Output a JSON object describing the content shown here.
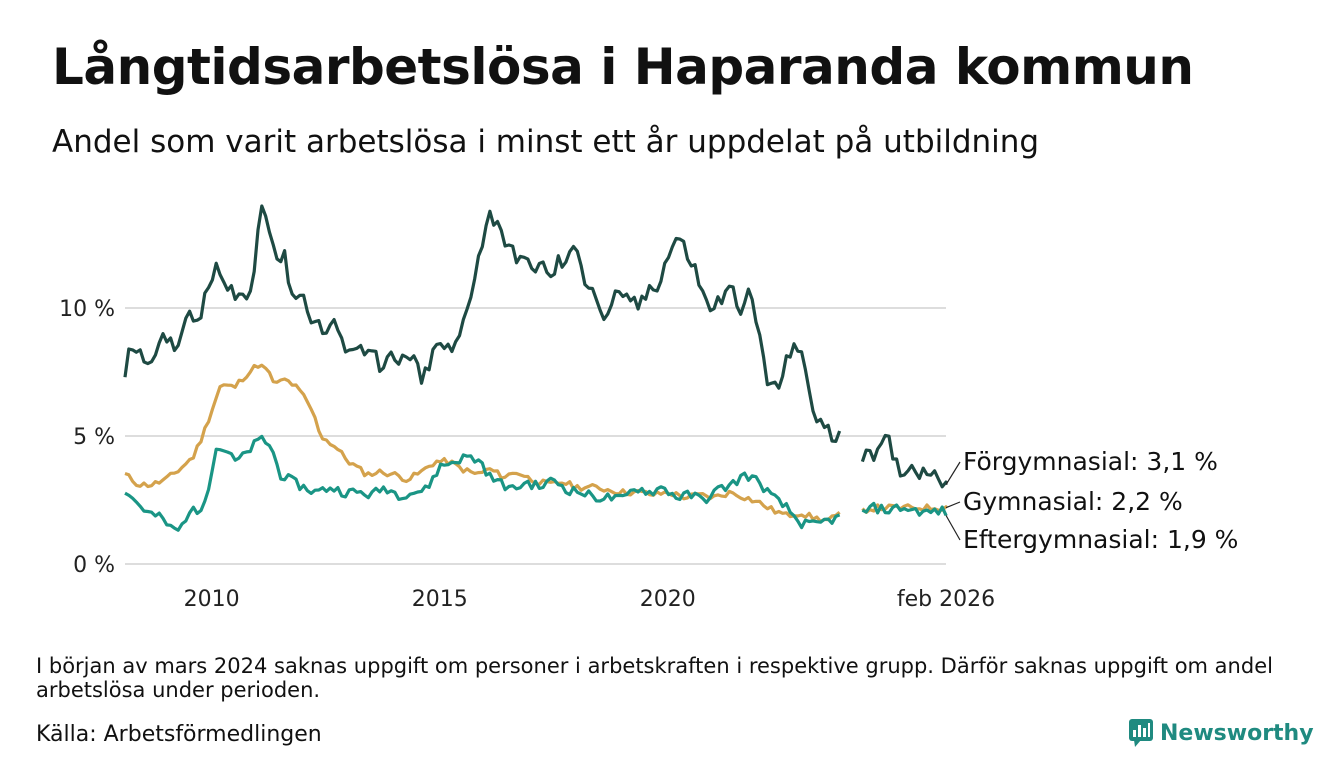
{
  "header": {
    "title": "Långtidsarbetslösa i Haparanda kommun",
    "subtitle": "Andel som varit arbetslösa i minst ett år uppdelat på utbildning"
  },
  "footer": {
    "footnote": "I början av mars 2024 saknas uppgift om personer i arbetskraften i respektive grupp. Därför saknas uppgift om andel arbetslösa under perioden.",
    "source": "Källa: Arbetsförmedlingen",
    "brand": "Newsworthy"
  },
  "colors": {
    "forgymnasial": "#1e4a43",
    "gymnasial": "#d4a24c",
    "eftergymnasial": "#1a9585",
    "grid": "#dddddd",
    "brand": "#1f8a80"
  },
  "chart_data": {
    "type": "line",
    "title": "Långtidsarbetslösa i Haparanda kommun",
    "xlabel": "",
    "ylabel": "",
    "x_tick_labels": [
      "2010",
      "2015",
      "2020",
      "feb 2026"
    ],
    "y_tick_labels": [
      "0 %",
      "5 %",
      "10 %"
    ],
    "y_ticks": [
      0,
      5,
      10
    ],
    "ylim": [
      0,
      14
    ],
    "x_start": 2008.1,
    "x_end": 2026.1,
    "gap": [
      2023.8,
      2024.2
    ],
    "series": [
      {
        "name": "Förgymnasial",
        "end_label": "Förgymnasial: 3,1 %",
        "color": "#1e4a43",
        "knots": [
          [
            2008.1,
            7.5
          ],
          [
            2008.25,
            8.6
          ],
          [
            2008.5,
            8.0
          ],
          [
            2008.8,
            8.4
          ],
          [
            2009.0,
            8.8
          ],
          [
            2009.2,
            8.6
          ],
          [
            2009.5,
            9.6
          ],
          [
            2009.7,
            9.5
          ],
          [
            2009.9,
            10.5
          ],
          [
            2010.1,
            11.7
          ],
          [
            2010.3,
            10.6
          ],
          [
            2010.5,
            10.7
          ],
          [
            2010.7,
            10.4
          ],
          [
            2010.9,
            10.6
          ],
          [
            2011.05,
            14.0
          ],
          [
            2011.2,
            13.9
          ],
          [
            2011.4,
            12.0
          ],
          [
            2011.6,
            11.9
          ],
          [
            2011.8,
            10.4
          ],
          [
            2012.0,
            10.5
          ],
          [
            2012.2,
            9.6
          ],
          [
            2012.5,
            9.0
          ],
          [
            2012.7,
            9.6
          ],
          [
            2012.8,
            8.5
          ],
          [
            2013.0,
            8.6
          ],
          [
            2013.3,
            8.3
          ],
          [
            2013.5,
            8.7
          ],
          [
            2013.7,
            7.4
          ],
          [
            2013.9,
            8.0
          ],
          [
            2014.1,
            7.8
          ],
          [
            2014.4,
            8.2
          ],
          [
            2014.6,
            7.0
          ],
          [
            2014.8,
            8.0
          ],
          [
            2015.0,
            8.6
          ],
          [
            2015.3,
            8.2
          ],
          [
            2015.5,
            9.3
          ],
          [
            2015.7,
            10.8
          ],
          [
            2015.9,
            12.4
          ],
          [
            2016.1,
            13.6
          ],
          [
            2016.3,
            13.4
          ],
          [
            2016.5,
            12.2
          ],
          [
            2016.8,
            12.0
          ],
          [
            2017.0,
            11.4
          ],
          [
            2017.2,
            11.9
          ],
          [
            2017.4,
            11.0
          ],
          [
            2017.6,
            11.8
          ],
          [
            2017.8,
            11.7
          ],
          [
            2018.0,
            12.6
          ],
          [
            2018.2,
            11.0
          ],
          [
            2018.4,
            10.7
          ],
          [
            2018.6,
            9.3
          ],
          [
            2018.8,
            10.5
          ],
          [
            2019.0,
            10.2
          ],
          [
            2019.2,
            10.4
          ],
          [
            2019.4,
            10.0
          ],
          [
            2019.6,
            10.8
          ],
          [
            2019.8,
            11.0
          ],
          [
            2020.0,
            12.0
          ],
          [
            2020.2,
            12.8
          ],
          [
            2020.4,
            12.2
          ],
          [
            2020.6,
            11.5
          ],
          [
            2020.8,
            10.3
          ],
          [
            2021.0,
            10.0
          ],
          [
            2021.2,
            10.4
          ],
          [
            2021.4,
            10.7
          ],
          [
            2021.6,
            10.1
          ],
          [
            2021.8,
            10.5
          ],
          [
            2022.0,
            9.0
          ],
          [
            2022.2,
            7.0
          ],
          [
            2022.4,
            6.8
          ],
          [
            2022.6,
            7.8
          ],
          [
            2022.75,
            8.8
          ],
          [
            2022.9,
            8.2
          ],
          [
            2023.05,
            7.2
          ],
          [
            2023.2,
            6.0
          ],
          [
            2023.4,
            5.4
          ],
          [
            2023.6,
            4.9
          ],
          [
            2023.75,
            5.2
          ],
          [
            2024.25,
            4.3
          ],
          [
            2024.4,
            4.6
          ],
          [
            2024.6,
            4.2
          ],
          [
            2024.8,
            4.9
          ],
          [
            2025.0,
            3.9
          ],
          [
            2025.2,
            3.6
          ],
          [
            2025.4,
            3.9
          ],
          [
            2025.6,
            3.5
          ],
          [
            2025.8,
            3.8
          ],
          [
            2026.0,
            3.4
          ],
          [
            2026.1,
            3.1
          ]
        ]
      },
      {
        "name": "Gymnasial",
        "end_label": "Gymnasial: 2,2 %",
        "color": "#d4a24c",
        "knots": [
          [
            2008.1,
            3.5
          ],
          [
            2008.4,
            3.1
          ],
          [
            2008.7,
            3.1
          ],
          [
            2009.0,
            3.3
          ],
          [
            2009.3,
            3.7
          ],
          [
            2009.6,
            4.2
          ],
          [
            2009.8,
            5.0
          ],
          [
            2010.0,
            6.0
          ],
          [
            2010.2,
            7.0
          ],
          [
            2010.5,
            6.9
          ],
          [
            2010.7,
            7.3
          ],
          [
            2010.9,
            7.6
          ],
          [
            2011.0,
            7.8
          ],
          [
            2011.2,
            7.6
          ],
          [
            2011.4,
            7.0
          ],
          [
            2011.6,
            7.2
          ],
          [
            2011.8,
            7.0
          ],
          [
            2012.0,
            6.6
          ],
          [
            2012.2,
            6.0
          ],
          [
            2012.4,
            5.0
          ],
          [
            2012.7,
            4.6
          ],
          [
            2013.0,
            4.0
          ],
          [
            2013.4,
            3.5
          ],
          [
            2013.7,
            3.6
          ],
          [
            2014.0,
            3.5
          ],
          [
            2014.3,
            3.3
          ],
          [
            2014.6,
            3.6
          ],
          [
            2014.9,
            4.0
          ],
          [
            2015.2,
            4.0
          ],
          [
            2015.5,
            3.7
          ],
          [
            2015.8,
            3.5
          ],
          [
            2016.1,
            3.7
          ],
          [
            2016.4,
            3.4
          ],
          [
            2016.7,
            3.6
          ],
          [
            2017.0,
            3.3
          ],
          [
            2017.4,
            3.1
          ],
          [
            2017.7,
            3.2
          ],
          [
            2018.0,
            3.0
          ],
          [
            2018.4,
            3.0
          ],
          [
            2018.7,
            2.9
          ],
          [
            2019.0,
            2.8
          ],
          [
            2019.4,
            2.8
          ],
          [
            2019.7,
            2.7
          ],
          [
            2020.0,
            2.8
          ],
          [
            2020.4,
            2.6
          ],
          [
            2020.7,
            2.7
          ],
          [
            2021.0,
            2.6
          ],
          [
            2021.4,
            2.8
          ],
          [
            2021.7,
            2.6
          ],
          [
            2022.0,
            2.4
          ],
          [
            2022.3,
            2.1
          ],
          [
            2022.6,
            1.9
          ],
          [
            2022.9,
            2.0
          ],
          [
            2023.2,
            1.8
          ],
          [
            2023.5,
            1.7
          ],
          [
            2023.75,
            1.9
          ],
          [
            2024.25,
            2.1
          ],
          [
            2024.6,
            2.2
          ],
          [
            2025.0,
            2.2
          ],
          [
            2025.4,
            2.2
          ],
          [
            2025.8,
            2.2
          ],
          [
            2026.1,
            2.2
          ]
        ]
      },
      {
        "name": "Eftergymnasial",
        "end_label": "Eftergymnasial: 1,9 %",
        "color": "#1a9585",
        "knots": [
          [
            2008.1,
            2.9
          ],
          [
            2008.3,
            2.5
          ],
          [
            2008.6,
            2.0
          ],
          [
            2008.9,
            1.8
          ],
          [
            2009.1,
            1.4
          ],
          [
            2009.3,
            1.3
          ],
          [
            2009.5,
            2.1
          ],
          [
            2009.7,
            2.0
          ],
          [
            2009.9,
            2.8
          ],
          [
            2010.1,
            4.5
          ],
          [
            2010.3,
            4.5
          ],
          [
            2010.5,
            4.0
          ],
          [
            2010.7,
            4.2
          ],
          [
            2010.9,
            4.6
          ],
          [
            2011.1,
            4.9
          ],
          [
            2011.3,
            4.6
          ],
          [
            2011.5,
            3.5
          ],
          [
            2011.8,
            3.2
          ],
          [
            2012.0,
            3.0
          ],
          [
            2012.3,
            2.8
          ],
          [
            2012.6,
            3.0
          ],
          [
            2012.9,
            2.8
          ],
          [
            2013.2,
            2.8
          ],
          [
            2013.5,
            2.7
          ],
          [
            2013.8,
            3.0
          ],
          [
            2014.1,
            2.7
          ],
          [
            2014.4,
            2.8
          ],
          [
            2014.7,
            2.9
          ],
          [
            2015.0,
            3.8
          ],
          [
            2015.3,
            4.0
          ],
          [
            2015.6,
            4.2
          ],
          [
            2015.9,
            4.0
          ],
          [
            2016.1,
            3.4
          ],
          [
            2016.3,
            3.2
          ],
          [
            2016.6,
            2.9
          ],
          [
            2016.9,
            3.2
          ],
          [
            2017.2,
            3.0
          ],
          [
            2017.5,
            3.3
          ],
          [
            2017.8,
            2.9
          ],
          [
            2018.1,
            2.8
          ],
          [
            2018.4,
            2.6
          ],
          [
            2018.7,
            2.6
          ],
          [
            2019.0,
            2.5
          ],
          [
            2019.3,
            3.0
          ],
          [
            2019.6,
            2.8
          ],
          [
            2019.9,
            3.0
          ],
          [
            2020.2,
            2.6
          ],
          [
            2020.5,
            2.7
          ],
          [
            2020.8,
            2.5
          ],
          [
            2021.1,
            2.9
          ],
          [
            2021.4,
            3.1
          ],
          [
            2021.7,
            3.5
          ],
          [
            2022.0,
            3.2
          ],
          [
            2022.3,
            2.6
          ],
          [
            2022.6,
            2.2
          ],
          [
            2022.9,
            1.6
          ],
          [
            2023.2,
            1.5
          ],
          [
            2023.5,
            1.7
          ],
          [
            2023.75,
            1.8
          ],
          [
            2024.25,
            2.0
          ],
          [
            2024.5,
            2.2
          ],
          [
            2024.8,
            2.1
          ],
          [
            2025.1,
            2.2
          ],
          [
            2025.4,
            2.1
          ],
          [
            2025.7,
            2.0
          ],
          [
            2026.0,
            2.1
          ],
          [
            2026.1,
            1.9
          ]
        ]
      }
    ]
  }
}
